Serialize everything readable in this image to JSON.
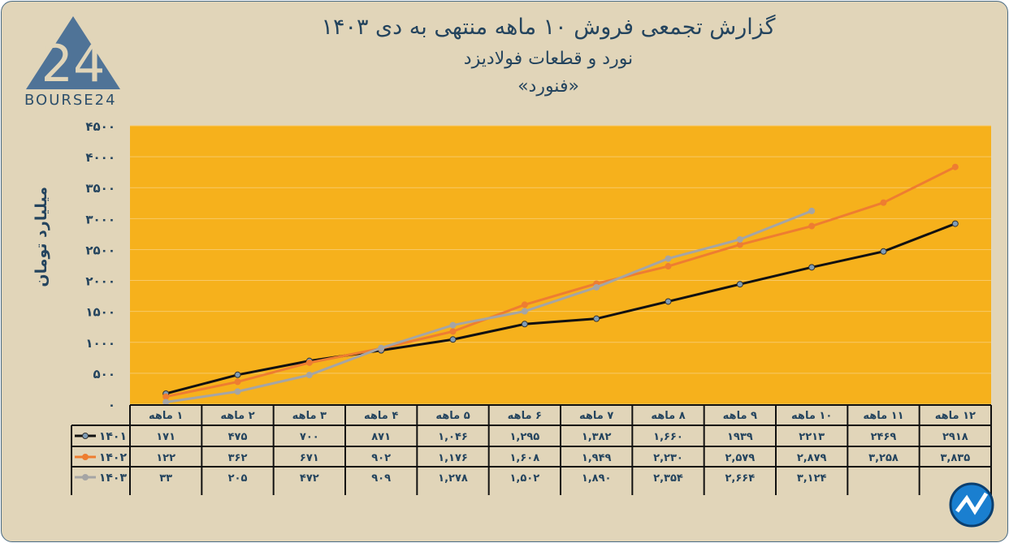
{
  "chart_data": {
    "type": "line",
    "title": "گزارش تجمعی فروش ۱۰ ماهه منتهی به دی ۱۴۰۳",
    "subtitle": "نورد و قطعات فولادیزد",
    "subtitle2": "«فنورد»",
    "xlabel": "",
    "ylabel": "میلیارد تومان",
    "ylim": [
      0,
      4500
    ],
    "yticks": [
      0,
      500,
      1000,
      1500,
      2000,
      2500,
      3000,
      3500,
      4000,
      4500
    ],
    "ytick_labels": [
      "۰",
      "۵۰۰",
      "۱۰۰۰",
      "۱۵۰۰",
      "۲۰۰۰",
      "۲۵۰۰",
      "۳۰۰۰",
      "۳۵۰۰",
      "۴۰۰۰",
      "۴۵۰۰"
    ],
    "categories": [
      "۱ ماهه",
      "۲ ماهه",
      "۳ ماهه",
      "۴ ماهه",
      "۵ ماهه",
      "۶ ماهه",
      "۷ ماهه",
      "۸ ماهه",
      "۹ ماهه",
      "۱۰ ماهه",
      "۱۱ ماهه",
      "۱۲ ماهه"
    ],
    "grid": true,
    "legend": "bottom-table",
    "series": [
      {
        "name": "۱۴۰۱",
        "color": "#111111",
        "values": [
          171,
          475,
          700,
          871,
          1046,
          1295,
          1382,
          1660,
          1939,
          2213,
          2469,
          2918
        ],
        "labels": [
          "۱۷۱",
          "۴۷۵",
          "۷۰۰",
          "۸۷۱",
          "۱,۰۴۶",
          "۱,۲۹۵",
          "۱,۳۸۲",
          "۱,۶۶۰",
          "۱۹۳۹",
          "۲۲۱۳",
          "۲۴۶۹",
          "۲۹۱۸"
        ]
      },
      {
        "name": "۱۴۰۲",
        "color": "#ee7d31",
        "values": [
          122,
          362,
          671,
          902,
          1176,
          1608,
          1949,
          2230,
          2579,
          2879,
          3258,
          3835
        ],
        "labels": [
          "۱۲۲",
          "۳۶۲",
          "۶۷۱",
          "۹۰۲",
          "۱,۱۷۶",
          "۱,۶۰۸",
          "۱,۹۴۹",
          "۲,۲۳۰",
          "۲,۵۷۹",
          "۲,۸۷۹",
          "۳,۲۵۸",
          "۳,۸۳۵"
        ]
      },
      {
        "name": "۱۴۰۳",
        "color": "#a5a5a5",
        "values": [
          33,
          205,
          472,
          909,
          1278,
          1502,
          1890,
          2354,
          2664,
          3124,
          null,
          null
        ],
        "labels": [
          "۳۳",
          "۲۰۵",
          "۴۷۲",
          "۹۰۹",
          "۱,۲۷۸",
          "۱,۵۰۲",
          "۱,۸۹۰",
          "۲,۳۵۴",
          "۲,۶۶۴",
          "۳,۱۲۴",
          "",
          ""
        ]
      }
    ]
  },
  "logo": {
    "text": "BOURSE24",
    "mark": "24"
  },
  "colors": {
    "plot_bg": "#f6b11c",
    "text": "#24445e",
    "background": "#e1d5b9"
  }
}
